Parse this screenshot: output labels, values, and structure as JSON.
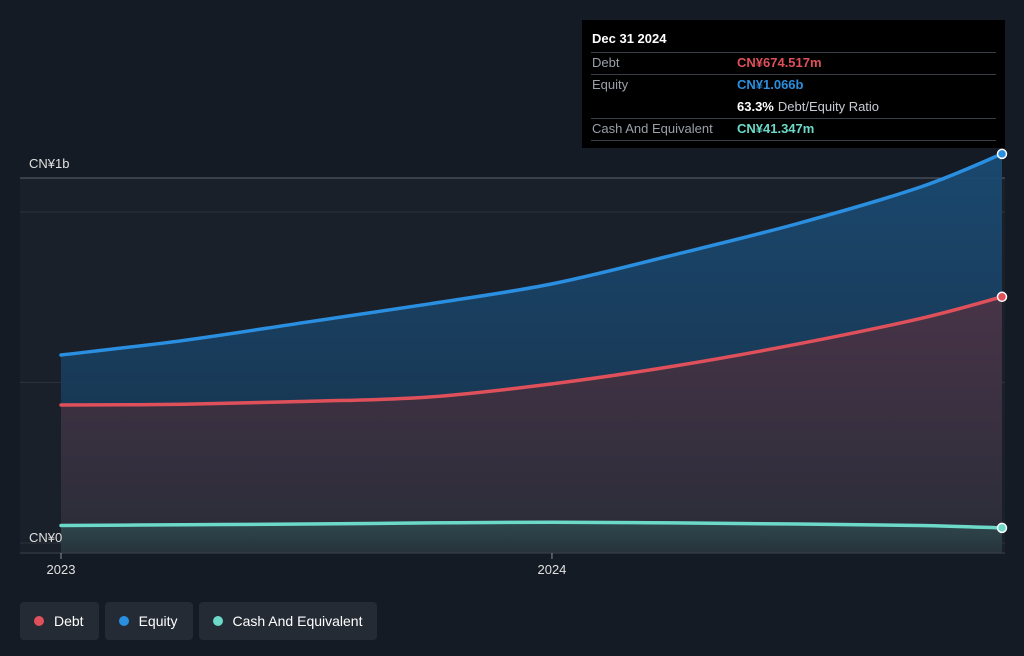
{
  "chart_data": {
    "type": "area",
    "x_ticks": [
      "2023",
      "2024"
    ],
    "y_ticks": [
      {
        "value": 1000,
        "label": "CN¥1b"
      },
      {
        "value": 0,
        "label": "CN¥0"
      }
    ],
    "ylim": [
      0,
      1000
    ],
    "unit": "CN¥ millions",
    "series": [
      {
        "name": "Debt",
        "color": "#e0505a",
        "points": [
          [
            "2023-01",
            378
          ],
          [
            "2023-04",
            380
          ],
          [
            "2023-07",
            388
          ],
          [
            "2023-10",
            400
          ],
          [
            "2024-01",
            436
          ],
          [
            "2024-04",
            485
          ],
          [
            "2024-07",
            545
          ],
          [
            "2024-10",
            615
          ],
          [
            "2024-12",
            674.517
          ]
        ]
      },
      {
        "name": "Equity",
        "color": "#2a8fe0",
        "points": [
          [
            "2023-01",
            515
          ],
          [
            "2023-04",
            555
          ],
          [
            "2023-07",
            605
          ],
          [
            "2023-10",
            655
          ],
          [
            "2024-01",
            710
          ],
          [
            "2024-04",
            790
          ],
          [
            "2024-07",
            875
          ],
          [
            "2024-10",
            975
          ],
          [
            "2024-12",
            1066
          ]
        ]
      },
      {
        "name": "Cash And Equivalent",
        "color": "#6cd9c9",
        "points": [
          [
            "2023-01",
            48
          ],
          [
            "2023-04",
            50
          ],
          [
            "2023-07",
            52
          ],
          [
            "2023-10",
            55
          ],
          [
            "2024-01",
            57
          ],
          [
            "2024-04",
            55
          ],
          [
            "2024-07",
            52
          ],
          [
            "2024-10",
            48
          ],
          [
            "2024-12",
            41.347
          ]
        ]
      }
    ]
  },
  "tooltip": {
    "date": "Dec 31 2024",
    "rows": [
      {
        "label": "Debt",
        "value": "CN¥674.517m",
        "color": "#e0505a"
      },
      {
        "label": "Equity",
        "value": "CN¥1.066b",
        "color": "#2a8fe0"
      }
    ],
    "ratio_value": "63.3%",
    "ratio_label": "Debt/Equity Ratio",
    "cash": {
      "label": "Cash And Equivalent",
      "value": "CN¥41.347m",
      "color": "#6cd9c9"
    }
  },
  "legend": [
    {
      "label": "Debt",
      "color": "#e0505a"
    },
    {
      "label": "Equity",
      "color": "#2a8fe0"
    },
    {
      "label": "Cash And Equivalent",
      "color": "#6cd9c9"
    }
  ]
}
